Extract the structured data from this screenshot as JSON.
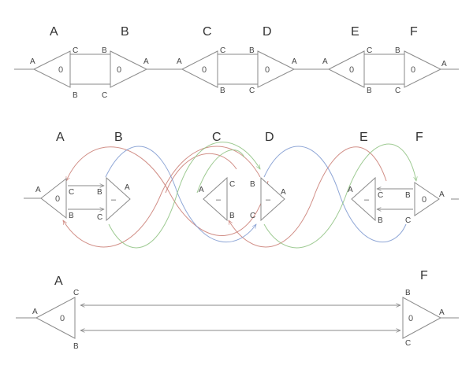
{
  "row1": {
    "letters": [
      "A",
      "B",
      "C",
      "D",
      "E",
      "F"
    ],
    "inner": [
      "0",
      "0",
      "0",
      "0",
      "0",
      "0"
    ],
    "ports": {
      "a": "A",
      "b": "B",
      "c": "C"
    }
  },
  "row2": {
    "letters": [
      "A",
      "B",
      "C",
      "D",
      "E",
      "F"
    ],
    "inner": [
      "0",
      "–",
      "–",
      "–",
      "–",
      "0"
    ],
    "ports": {
      "a": "A",
      "b": "B",
      "c": "C"
    }
  },
  "row3": {
    "letters": [
      "A",
      "F"
    ],
    "inner": [
      "0",
      "0"
    ],
    "ports": {
      "a": "A",
      "b": "B",
      "c": "C"
    }
  },
  "colors": {
    "outline": "#8a8a8a",
    "red": "#c97b72",
    "blue": "#7b97cf",
    "green": "#8dc17f"
  }
}
